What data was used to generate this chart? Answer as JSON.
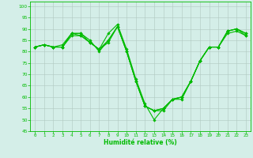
{
  "title": "",
  "xlabel": "Humidité relative (%)",
  "ylabel": "",
  "background_color": "#d4eee8",
  "grid_color": "#b0c8c0",
  "line_color": "#00bb00",
  "marker": "D",
  "markersize": 1.8,
  "linewidth": 0.8,
  "xlim": [
    -0.5,
    23.5
  ],
  "ylim": [
    45,
    102
  ],
  "yticks": [
    45,
    50,
    55,
    60,
    65,
    70,
    75,
    80,
    85,
    90,
    95,
    100
  ],
  "xticks": [
    0,
    1,
    2,
    3,
    4,
    5,
    6,
    7,
    8,
    9,
    10,
    11,
    12,
    13,
    14,
    15,
    16,
    17,
    18,
    19,
    20,
    21,
    22,
    23
  ],
  "series": [
    [
      82,
      83,
      82,
      82,
      88,
      88,
      85,
      80,
      85,
      91,
      80,
      67,
      56,
      54,
      54,
      59,
      60,
      67,
      76,
      82,
      82,
      89,
      90,
      88
    ],
    [
      82,
      83,
      82,
      83,
      88,
      88,
      84,
      81,
      88,
      92,
      81,
      68,
      57,
      50,
      55,
      59,
      60,
      67,
      76,
      82,
      82,
      89,
      90,
      87
    ],
    [
      82,
      83,
      82,
      82,
      88,
      87,
      84,
      81,
      85,
      91,
      80,
      67,
      56,
      54,
      55,
      59,
      60,
      67,
      76,
      82,
      82,
      89,
      90,
      88
    ],
    [
      82,
      83,
      82,
      82,
      87,
      87,
      84,
      81,
      84,
      91,
      80,
      67,
      56,
      54,
      55,
      59,
      59,
      67,
      76,
      82,
      82,
      88,
      89,
      87
    ]
  ]
}
